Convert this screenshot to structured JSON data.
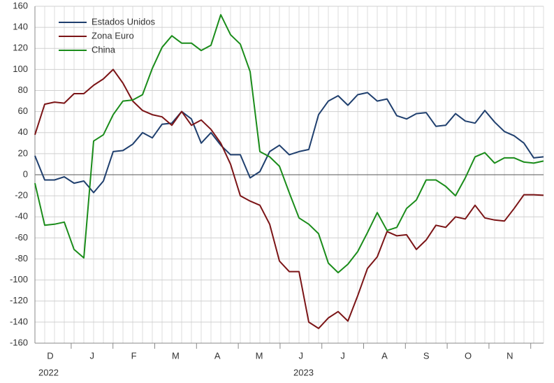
{
  "chart_data": {
    "type": "line",
    "month_labels": [
      "D",
      "J",
      "F",
      "M",
      "A",
      "M",
      "J",
      "J",
      "A",
      "S",
      "O",
      "N"
    ],
    "year_labels": [
      "2022",
      "2023"
    ],
    "ylim": [
      -160,
      160
    ],
    "yticks": [
      -160,
      -140,
      -120,
      -100,
      -80,
      -60,
      -40,
      -20,
      0,
      20,
      40,
      60,
      80,
      100,
      120,
      140,
      160
    ],
    "grid": true,
    "legend": "upper left",
    "series": [
      {
        "name": "Estados Unidos",
        "color": "#1f3f6e",
        "values": [
          18,
          -5,
          -5,
          -2,
          -8,
          -6,
          -17,
          -6,
          22,
          23,
          29,
          40,
          35,
          48,
          49,
          60,
          53,
          30,
          40,
          28,
          19,
          19,
          -3,
          3,
          22,
          28,
          19,
          22,
          24,
          57,
          70,
          75,
          66,
          76,
          78,
          70,
          72,
          56,
          53,
          58,
          59,
          46,
          47,
          58,
          51,
          49,
          61,
          50,
          41,
          37,
          30,
          16,
          17
        ]
      },
      {
        "name": "Zona Euro",
        "color": "#7b1416",
        "values": [
          38,
          67,
          69,
          68,
          77,
          77,
          85,
          91,
          100,
          87,
          70,
          61,
          57,
          55,
          47,
          60,
          47,
          52,
          43,
          30,
          10,
          -20,
          -25,
          -29,
          -47,
          -82,
          -92,
          -92,
          -140,
          -146,
          -136,
          -130,
          -139,
          -115,
          -89,
          -78,
          -54,
          -58,
          -57,
          -71,
          -62,
          -48,
          -50,
          -40,
          -42,
          -29,
          -41,
          -43,
          -44,
          -32,
          -19,
          -19,
          -19.5
        ]
      },
      {
        "name": "China",
        "color": "#1a8c1a",
        "values": [
          -8,
          -48,
          -47,
          -45,
          -71,
          -79,
          32,
          38,
          57,
          70,
          71,
          76,
          101,
          121,
          132,
          125,
          125,
          118,
          123,
          152,
          133,
          124,
          98,
          22,
          17,
          8,
          -17,
          -41,
          -47,
          -56,
          -84,
          -93,
          -85,
          -73,
          -55,
          -36,
          -53,
          -50,
          -32,
          -24,
          -5,
          -5,
          -11,
          -20,
          -3,
          17,
          21,
          11,
          16,
          16,
          12,
          11,
          13
        ]
      }
    ]
  }
}
